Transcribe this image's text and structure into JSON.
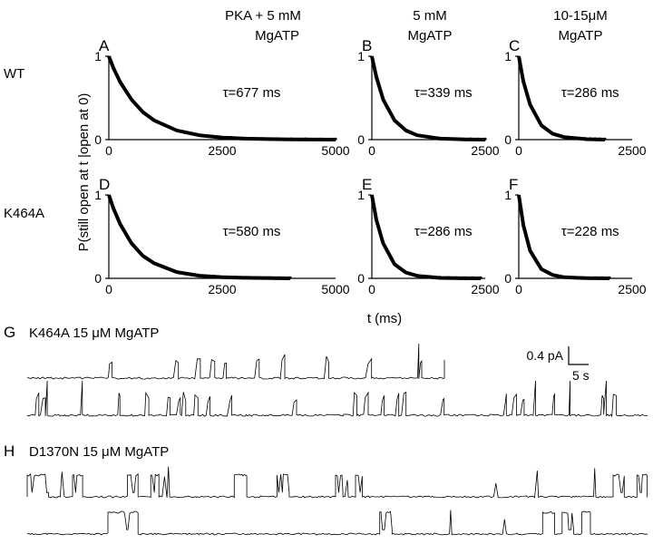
{
  "column_titles": [
    {
      "line1": "PKA + 5 mM",
      "line2": "MgATP"
    },
    {
      "line1": "5 mM",
      "line2": "MgATP"
    },
    {
      "line1": "10-15μM",
      "line2": "MgATP"
    }
  ],
  "row_labels": [
    "WT",
    "K464A"
  ],
  "y_axis_label": "P(still open at t |open at 0)",
  "x_axis_label": "t (ms)",
  "chart_data": [
    {
      "type": "line",
      "panel": "A",
      "row": "WT",
      "condition": "PKA + 5 mM MgATP",
      "tau_ms": 677,
      "tau_label": "τ=677 ms",
      "xlim": [
        0,
        5000
      ],
      "ylim": [
        0,
        1
      ],
      "xticks": [
        "0",
        "2500",
        "5000"
      ],
      "yticks": [
        "0",
        "1"
      ],
      "x": [
        0,
        100,
        250,
        500,
        750,
        1000,
        1500,
        2000,
        2500,
        3000,
        3500,
        4000,
        5000
      ],
      "y": [
        1.0,
        0.86,
        0.69,
        0.48,
        0.33,
        0.23,
        0.11,
        0.052,
        0.025,
        0.012,
        0.006,
        0.003,
        0.0
      ],
      "tail_end_ms": 5000
    },
    {
      "type": "line",
      "panel": "B",
      "row": "WT",
      "condition": "5 mM MgATP",
      "tau_ms": 339,
      "tau_label": "τ=339 ms",
      "xlim": [
        0,
        2500
      ],
      "ylim": [
        0,
        1
      ],
      "xticks": [
        "0",
        "2500"
      ],
      "yticks": [
        "0",
        "1"
      ],
      "x": [
        0,
        100,
        250,
        500,
        750,
        1000,
        1500,
        2000,
        2500
      ],
      "y": [
        1.0,
        0.75,
        0.48,
        0.23,
        0.11,
        0.052,
        0.012,
        0.003,
        0.0
      ],
      "tail_end_ms": 2500
    },
    {
      "type": "line",
      "panel": "C",
      "row": "WT",
      "condition": "10-15μM MgATP",
      "tau_ms": 286,
      "tau_label": "τ=286 ms",
      "xlim": [
        0,
        2500
      ],
      "ylim": [
        0,
        1
      ],
      "xticks": [
        "0",
        "2500"
      ],
      "yticks": [
        "0",
        "1"
      ],
      "x": [
        0,
        100,
        250,
        500,
        750,
        1000,
        1500,
        1900
      ],
      "y": [
        1.0,
        0.7,
        0.42,
        0.17,
        0.07,
        0.03,
        0.005,
        0.0
      ],
      "tail_end_ms": 1900
    },
    {
      "type": "line",
      "panel": "D",
      "row": "K464A",
      "condition": "PKA + 5 mM MgATP",
      "tau_ms": 580,
      "tau_label": "τ=580 ms",
      "xlim": [
        0,
        5000
      ],
      "ylim": [
        0,
        1
      ],
      "xticks": [
        "0",
        "2500",
        "5000"
      ],
      "yticks": [
        "0",
        "1"
      ],
      "x": [
        0,
        100,
        250,
        500,
        750,
        1000,
        1500,
        2000,
        2500,
        3000,
        4000
      ],
      "y": [
        1.0,
        0.84,
        0.65,
        0.42,
        0.27,
        0.18,
        0.075,
        0.032,
        0.013,
        0.006,
        0.0
      ],
      "tail_end_ms": 4000
    },
    {
      "type": "line",
      "panel": "E",
      "row": "K464A",
      "condition": "5 mM MgATP",
      "tau_ms": 286,
      "tau_label": "τ=286 ms",
      "xlim": [
        0,
        2500
      ],
      "ylim": [
        0,
        1
      ],
      "xticks": [
        "0",
        "2500"
      ],
      "yticks": [
        "0",
        "1"
      ],
      "x": [
        0,
        100,
        250,
        500,
        750,
        1000,
        1500,
        2000,
        2400
      ],
      "y": [
        1.0,
        0.7,
        0.42,
        0.17,
        0.07,
        0.03,
        0.005,
        0.001,
        0.0
      ],
      "tail_end_ms": 2400
    },
    {
      "type": "line",
      "panel": "F",
      "row": "K464A",
      "condition": "10-15μM MgATP",
      "tau_ms": 228,
      "tau_label": "τ=228 ms",
      "xlim": [
        0,
        2500
      ],
      "ylim": [
        0,
        1
      ],
      "xticks": [
        "0",
        "2500"
      ],
      "yticks": [
        "0",
        "1"
      ],
      "x": [
        0,
        100,
        250,
        500,
        750,
        1000,
        1500,
        2000
      ],
      "y": [
        1.0,
        0.64,
        0.33,
        0.11,
        0.04,
        0.013,
        0.002,
        0.0
      ],
      "tail_end_ms": 2000
    }
  ],
  "traces": [
    {
      "letter": "G",
      "title": "K464A  15 μM MgATP",
      "style": "flicker"
    },
    {
      "letter": "H",
      "title": "D1370N  15 μM MgATP",
      "style": "bursts"
    }
  ],
  "scale_bar": {
    "current_label": "0.4 pA",
    "time_label": "5 s"
  }
}
